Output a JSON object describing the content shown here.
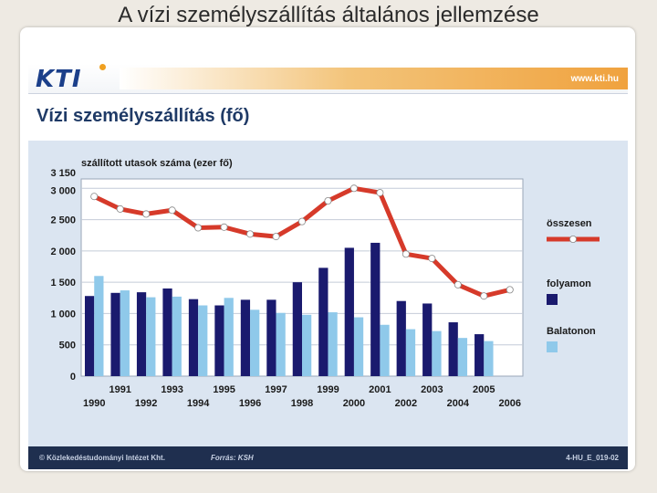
{
  "slide_title": "A vízi személyszállítás általános jellemzése",
  "banner": {
    "logo": "KTI",
    "url": "www.kti.hu"
  },
  "footer": {
    "org": "© Közlekedéstudományi Intézet Kht.",
    "source": "Forrás: KSH",
    "code": "4-HU_E_019-02"
  },
  "colors": {
    "total": "#d63a2a",
    "river": "#1a1a6e",
    "balaton": "#8fc9ea",
    "panel": "#dbe5f1",
    "heading": "#1f3a66"
  },
  "chart_data": {
    "type": "bar",
    "title": "Vízi személyszállítás (fő)",
    "ylabel": "szállított utasok száma (ezer fő)",
    "ylim": [
      0,
      3150
    ],
    "yticks": [
      0,
      500,
      1000,
      1500,
      2000,
      2500,
      3000,
      3150
    ],
    "grid": true,
    "legend": "right",
    "categories": [
      "1990",
      "1991",
      "1992",
      "1993",
      "1994",
      "1995",
      "1996",
      "1997",
      "1998",
      "1999",
      "2000",
      "2001",
      "2002",
      "2003",
      "2004",
      "2005",
      "2006"
    ],
    "series": [
      {
        "name": "összesen",
        "type": "line",
        "values": [
          2870,
          2670,
          2590,
          2650,
          2370,
          2380,
          2270,
          2230,
          2470,
          2800,
          3000,
          2930,
          1950,
          1880,
          1460,
          1280,
          1380
        ]
      },
      {
        "name": "folyamon",
        "type": "bar",
        "values": [
          1280,
          1330,
          1340,
          1400,
          1230,
          1130,
          1220,
          1220,
          1500,
          1730,
          2050,
          2130,
          1200,
          1160,
          860,
          670,
          null
        ]
      },
      {
        "name": "Balatonon",
        "type": "bar",
        "values": [
          1600,
          1370,
          1260,
          1270,
          1130,
          1250,
          1060,
          1010,
          980,
          1020,
          940,
          820,
          750,
          720,
          610,
          560,
          null
        ]
      }
    ]
  }
}
